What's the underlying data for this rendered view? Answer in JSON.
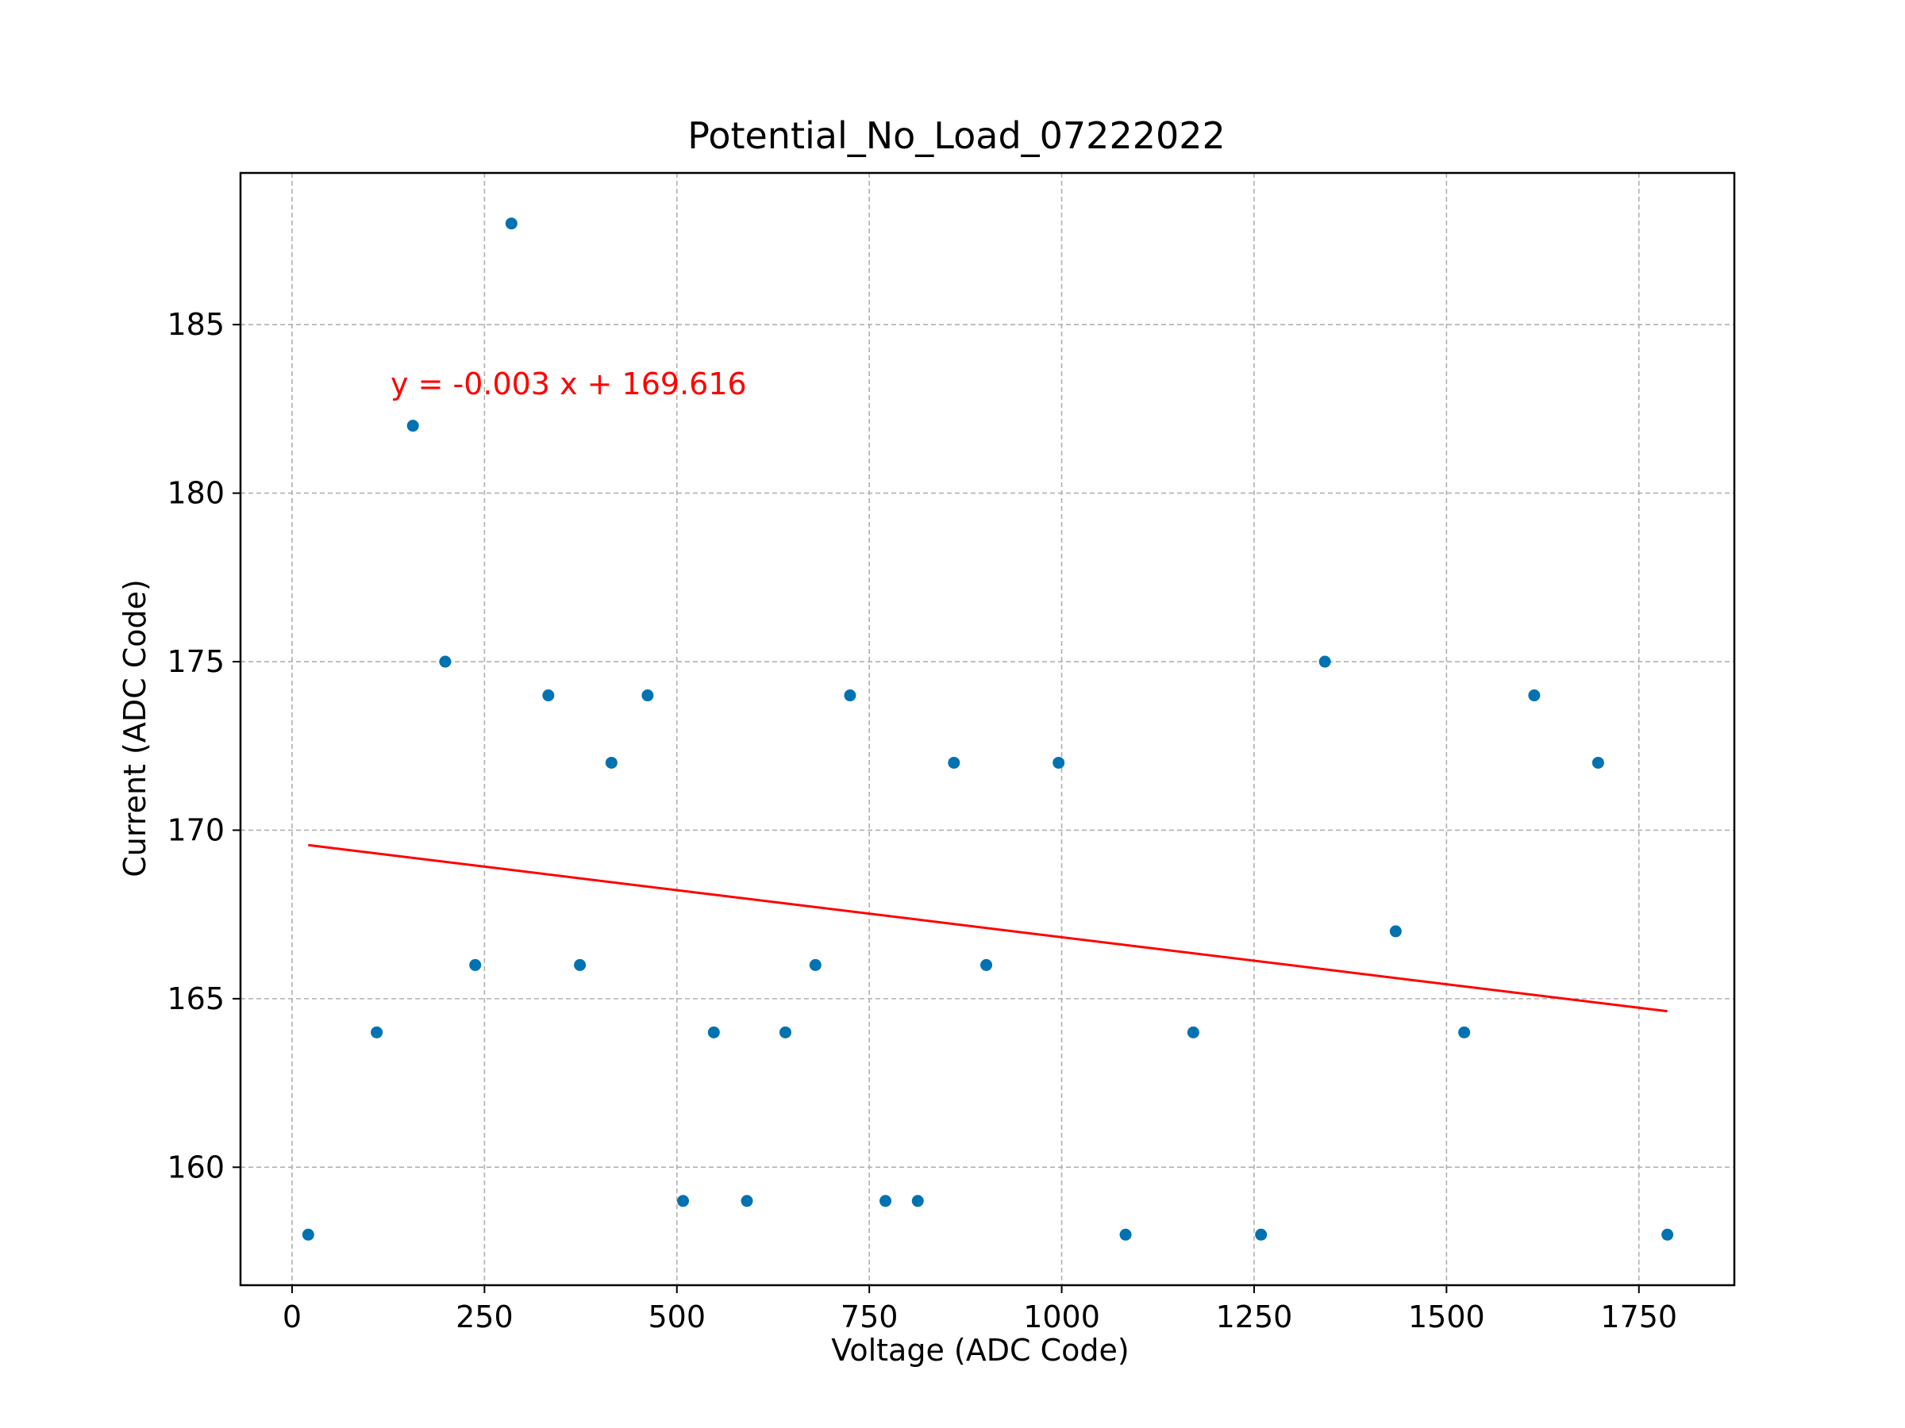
{
  "chart_data": {
    "type": "scatter",
    "title": "Potential_No_Load_07222022",
    "xlabel": "Voltage (ADC Code)",
    "ylabel": "Current (ADC Code)",
    "xlim": [
      -67,
      1874
    ],
    "ylim": [
      156.5,
      189.5
    ],
    "xticks": [
      0,
      250,
      500,
      750,
      1000,
      1250,
      1500,
      1750
    ],
    "yticks": [
      160,
      165,
      170,
      175,
      180,
      185
    ],
    "grid": true,
    "annotation": "y = -0.003 x + 169.616",
    "colors": {
      "points": "#0072b2",
      "fit": "#ff0000",
      "annotation": "#ff0000"
    },
    "points": [
      [
        21,
        158
      ],
      [
        110,
        164
      ],
      [
        157,
        182
      ],
      [
        199,
        175
      ],
      [
        238,
        166
      ],
      [
        285,
        188
      ],
      [
        333,
        174
      ],
      [
        374,
        166
      ],
      [
        415,
        172
      ],
      [
        462,
        174
      ],
      [
        508,
        159
      ],
      [
        548,
        164
      ],
      [
        591,
        159
      ],
      [
        641,
        164
      ],
      [
        680,
        166
      ],
      [
        725,
        174
      ],
      [
        771,
        159
      ],
      [
        813,
        159
      ],
      [
        860,
        172
      ],
      [
        902,
        166
      ],
      [
        996,
        172
      ],
      [
        1083,
        158
      ],
      [
        1171,
        164
      ],
      [
        1259,
        158
      ],
      [
        1342,
        175
      ],
      [
        1434,
        167
      ],
      [
        1523,
        164
      ],
      [
        1614,
        174
      ],
      [
        1697,
        172
      ],
      [
        1787,
        158
      ]
    ],
    "fit_line": {
      "slope": -0.002791,
      "intercept": 169.616,
      "x_range": [
        21,
        1787
      ]
    }
  }
}
